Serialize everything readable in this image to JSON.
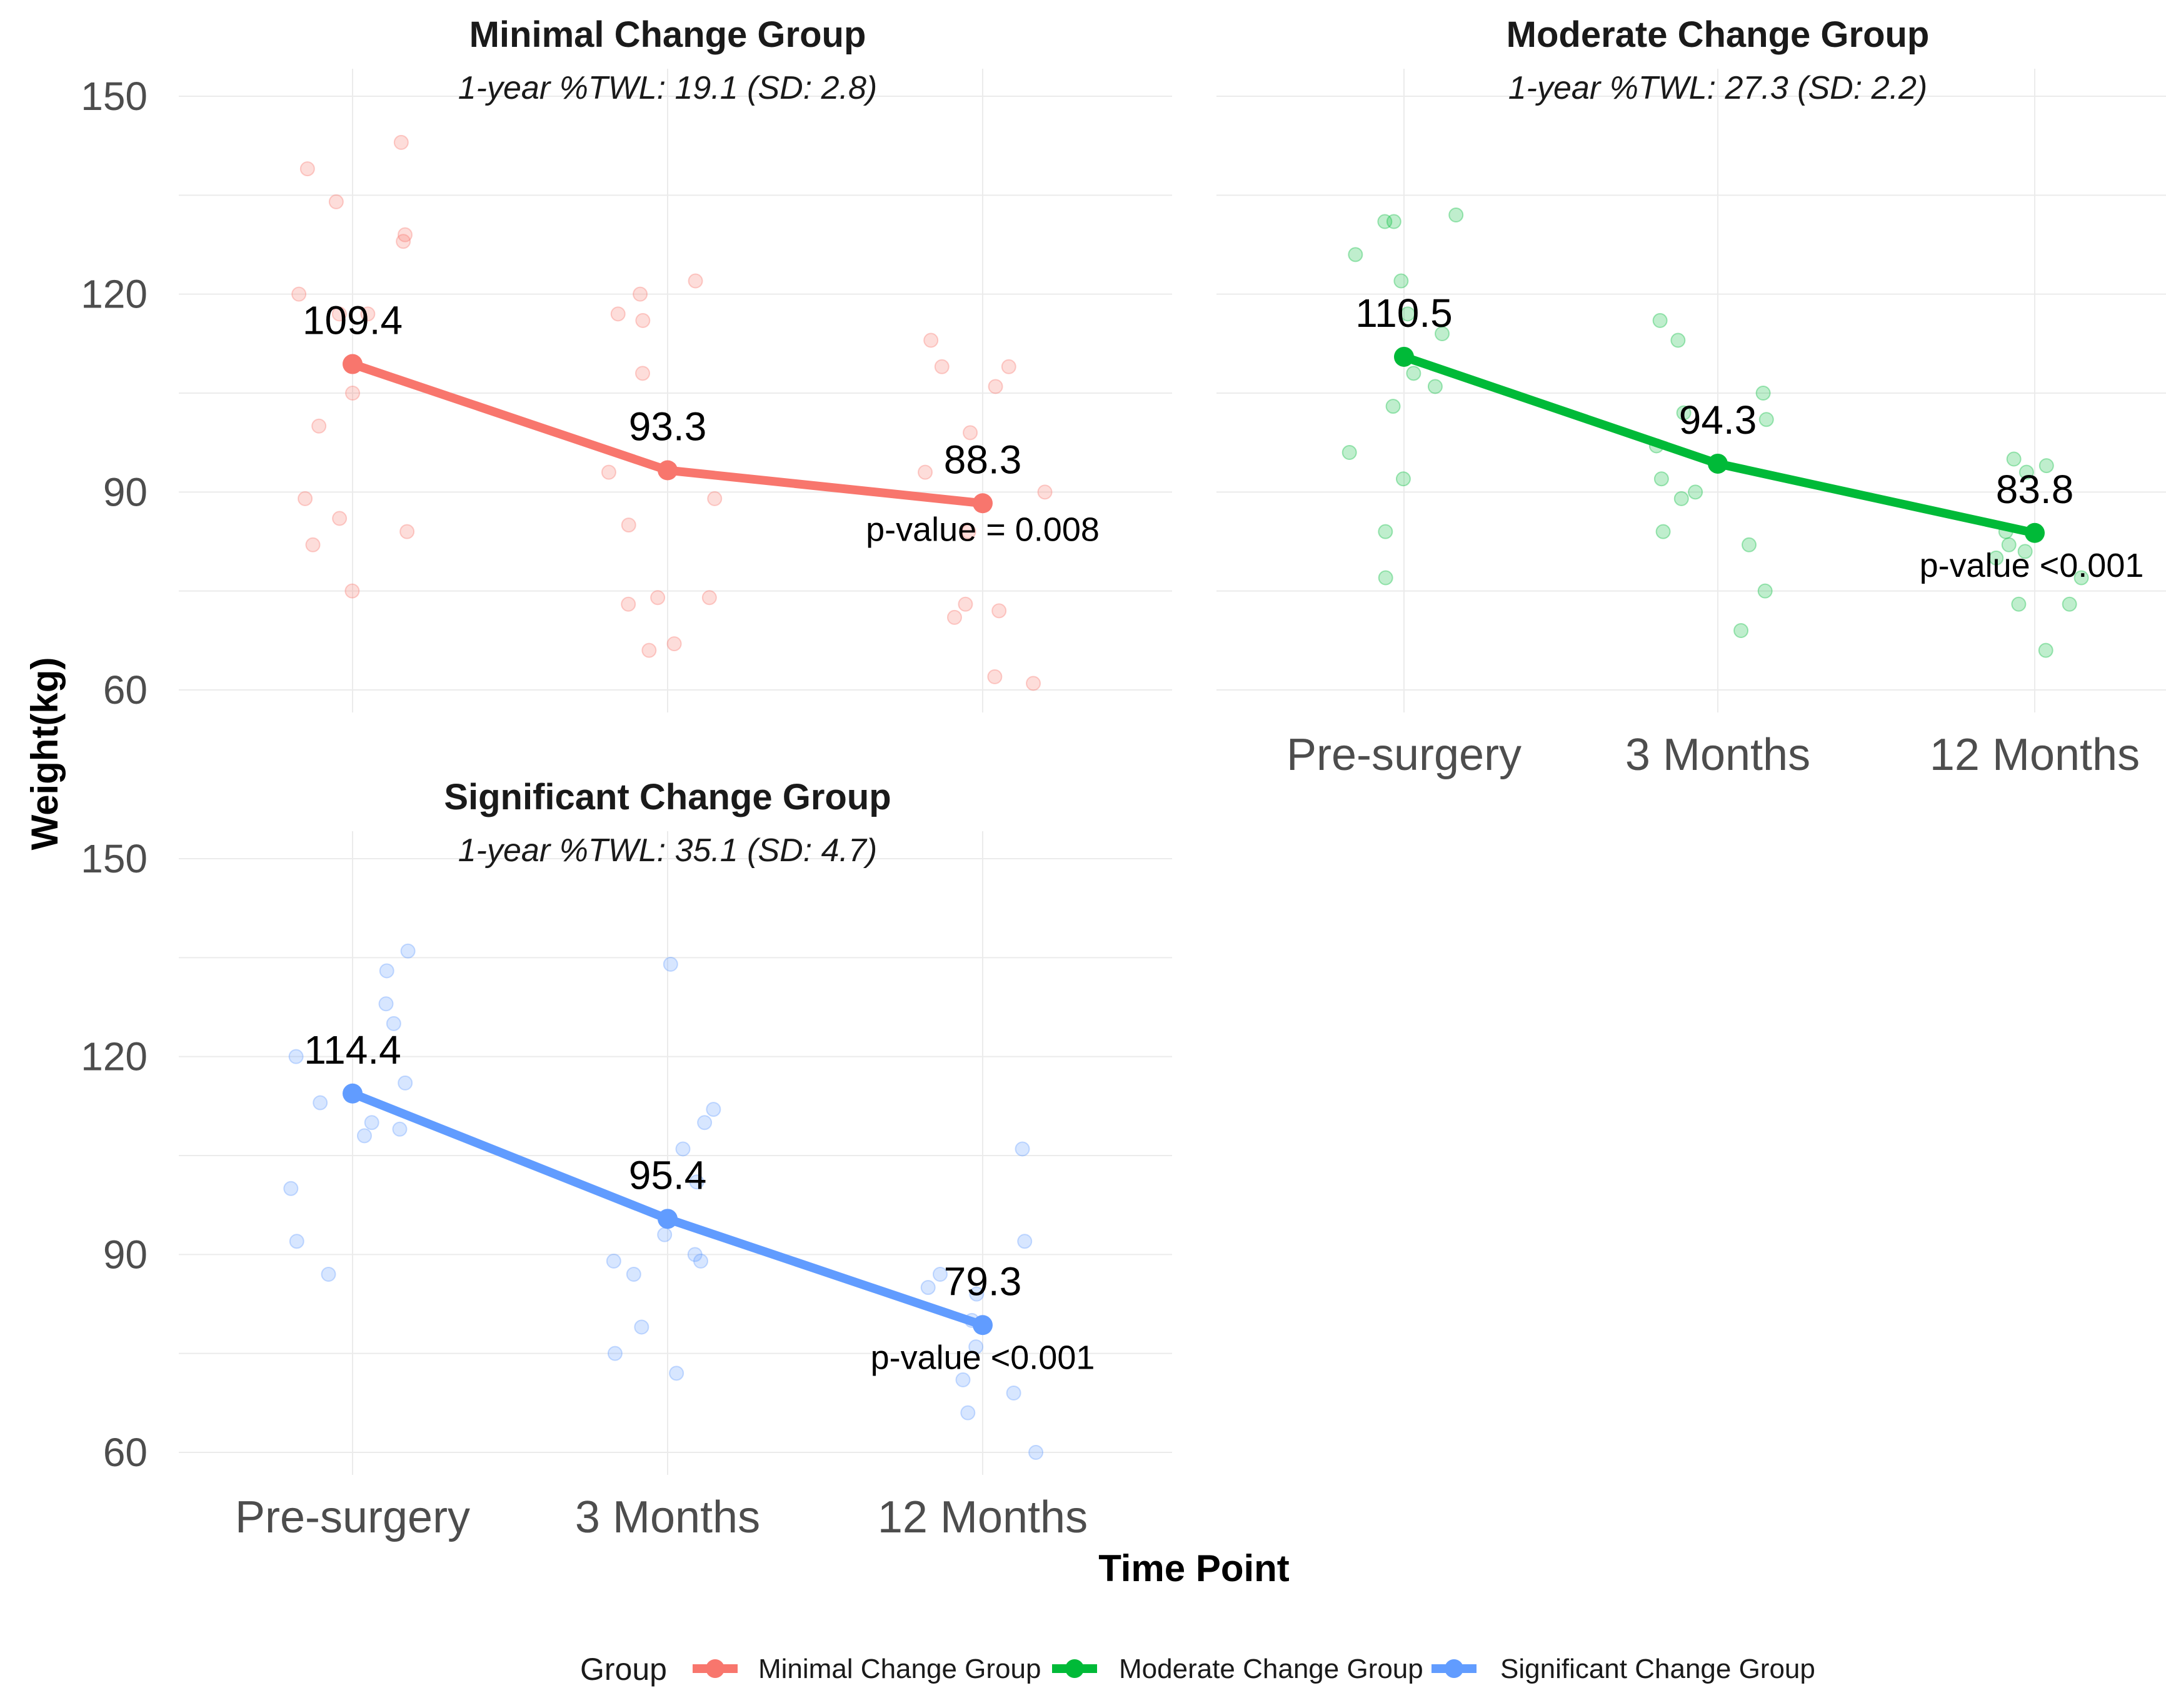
{
  "chart_data": {
    "type": "line",
    "xlabel": "Time Point",
    "ylabel": "Weight(kg)",
    "categories": [
      "Pre-surgery",
      "3 Months",
      "12 Months"
    ],
    "yticks": [
      60,
      90,
      120,
      150
    ],
    "ylim": [
      55,
      155
    ],
    "legend": {
      "title": "Group",
      "position": "bottom",
      "entries": [
        "Minimal Change Group",
        "Moderate Change Group",
        "Significant Change Group"
      ]
    },
    "panels": [
      {
        "name": "Minimal Change Group",
        "title": "Minimal Change Group",
        "subtitle": "1-year %TWL: 19.1 (SD: 2.8)",
        "color": "#F8766D",
        "means": [
          109.4,
          93.3,
          88.3
        ],
        "mean_labels": [
          "109.4",
          "93.3",
          "88.3"
        ],
        "pvalue_label": "p-value = 0.008",
        "points": [
          [
            143,
            129,
            120,
            117,
            128,
            139,
            134,
            105,
            117,
            100,
            89,
            84,
            86,
            82,
            75
          ],
          [
            120,
            117,
            122,
            116,
            108,
            93,
            89,
            85,
            74,
            74,
            73,
            67,
            66
          ],
          [
            109,
            106,
            113,
            109,
            99,
            93,
            90,
            73,
            72,
            62,
            61,
            71,
            84
          ]
        ]
      },
      {
        "name": "Moderate Change Group",
        "title": "Moderate Change Group",
        "subtitle": "1-year %TWL: 27.3 (SD: 2.2)",
        "color": "#00BA38",
        "means": [
          110.5,
          94.3,
          83.8
        ],
        "mean_labels": [
          "110.5",
          "94.3",
          "83.8"
        ],
        "pvalue_label": "p-value <0.001",
        "points": [
          [
            132,
            131,
            131,
            126,
            122,
            117,
            114,
            108,
            106,
            103,
            96,
            92,
            84,
            77
          ],
          [
            113,
            116,
            105,
            102,
            101,
            97,
            92,
            90,
            89,
            84,
            82,
            75,
            69
          ],
          [
            94,
            93,
            95,
            84,
            82,
            81,
            80,
            77,
            73,
            73,
            66
          ]
        ]
      },
      {
        "name": "Significant Change Group",
        "title": "Significant Change Group",
        "subtitle": "1-year %TWL: 35.1 (SD: 4.7)",
        "color": "#619CFF",
        "means": [
          114.4,
          95.4,
          79.3
        ],
        "mean_labels": [
          "114.4",
          "95.4",
          "79.3"
        ],
        "pvalue_label": "p-value <0.001",
        "points": [
          [
            136,
            133,
            128,
            125,
            120,
            116,
            113,
            110,
            109,
            108,
            100,
            92,
            87
          ],
          [
            134,
            112,
            110,
            106,
            101,
            93,
            90,
            89,
            89,
            87,
            79,
            75,
            72
          ],
          [
            106,
            92,
            87,
            85,
            84,
            80,
            76,
            71,
            69,
            66,
            60
          ]
        ]
      }
    ]
  }
}
